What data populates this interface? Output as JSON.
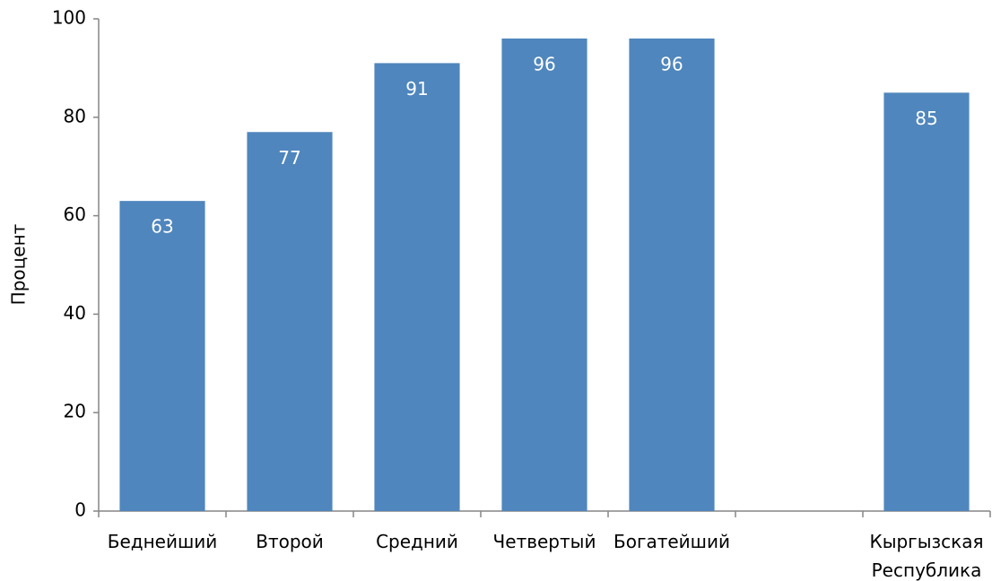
{
  "chart_data": {
    "type": "bar",
    "ylabel": "Процент",
    "categories": [
      "Беднейший",
      "Второй",
      "Средний",
      "Четвертый",
      "Богатейший",
      null,
      "Кыргызская Республика"
    ],
    "values": [
      63,
      77,
      91,
      96,
      96,
      null,
      85
    ],
    "color": "#4f86bd",
    "ylim": [
      0,
      100
    ],
    "yticks": [
      0,
      20,
      40,
      60,
      80,
      100
    ],
    "grid": false
  }
}
